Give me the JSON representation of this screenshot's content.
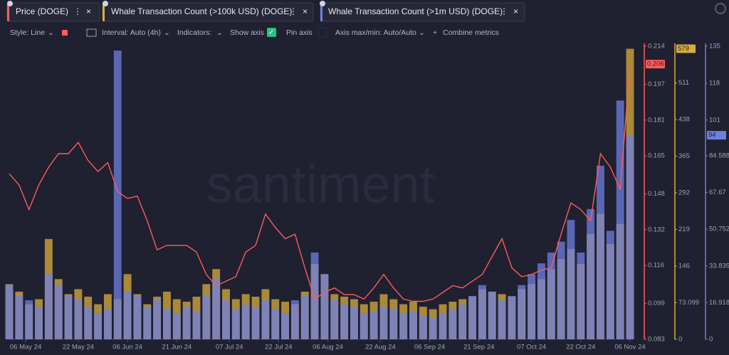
{
  "tabs_icon": true,
  "toolbar": {
    "style": "Style: Line",
    "interval": "Interval: Auto (4h)",
    "indicators": "Indicators:",
    "show_axis": "Show axis",
    "pin_axis": "Pin axis",
    "axis_minmax": "Axis max/min: Auto/Auto",
    "combine": "Combine metrics"
  },
  "watermark": "santiment",
  "chart_data": {
    "type": "combo",
    "grid": false,
    "x": [
      "01 May 24",
      "04 May 24",
      "07 May 24",
      "10 May 24",
      "13 May 24",
      "16 May 24",
      "19 May 24",
      "22 May 24",
      "25 May 24",
      "28 May 24",
      "31 May 24",
      "03 Jun 24",
      "06 Jun 24",
      "09 Jun 24",
      "12 Jun 24",
      "15 Jun 24",
      "18 Jun 24",
      "21 Jun 24",
      "24 Jun 24",
      "27 Jun 24",
      "30 Jun 24",
      "03 Jul 24",
      "06 Jul 24",
      "09 Jul 24",
      "12 Jul 24",
      "15 Jul 24",
      "18 Jul 24",
      "21 Jul 24",
      "24 Jul 24",
      "27 Jul 24",
      "30 Jul 24",
      "02 Aug 24",
      "05 Aug 24",
      "08 Aug 24",
      "11 Aug 24",
      "14 Aug 24",
      "17 Aug 24",
      "20 Aug 24",
      "23 Aug 24",
      "26 Aug 24",
      "29 Aug 24",
      "01 Sep 24",
      "04 Sep 24",
      "07 Sep 24",
      "10 Sep 24",
      "13 Sep 24",
      "16 Sep 24",
      "19 Sep 24",
      "22 Sep 24",
      "25 Sep 24",
      "28 Sep 24",
      "01 Oct 24",
      "04 Oct 24",
      "07 Oct 24",
      "10 Oct 24",
      "13 Oct 24",
      "16 Oct 24",
      "19 Oct 24",
      "22 Oct 24",
      "25 Oct 24",
      "28 Oct 24",
      "31 Oct 24",
      "03 Nov 24",
      "06 Nov 24"
    ],
    "xlim": [
      "01 May 24",
      "06 Nov 24"
    ],
    "xticks": [
      "06 May 24",
      "22 May 24",
      "06 Jun 24",
      "21 Jun 24",
      "07 Jul 24",
      "22 Jul 24",
      "06 Aug 24",
      "22 Aug 24",
      "06 Sep 24",
      "21 Sep 24",
      "07 Oct 24",
      "22 Oct 24",
      "06 Nov 24"
    ],
    "ylim": [
      0.083,
      0.214
    ],
    "yticks": [
      0.083,
      0.099,
      0.116,
      0.132,
      0.148,
      0.165,
      0.181,
      0.197,
      0.214
    ],
    "y2lim": [
      0,
      584
    ],
    "y2ticks": [
      0,
      73.099,
      146,
      219,
      292,
      365,
      438,
      511
    ],
    "y3lim": [
      0,
      135
    ],
    "y3ticks": [
      0,
      16.918,
      33.835,
      50.752,
      67.67,
      84.588,
      101,
      118,
      135
    ],
    "series": [
      {
        "name": "Whale Transaction Count (>100k USD) (DOGE)",
        "type": "bar",
        "axis": "y2",
        "color": "#d9ad3c",
        "values": [
          110,
          95,
          70,
          80,
          200,
          120,
          90,
          100,
          85,
          70,
          90,
          80,
          130,
          90,
          70,
          85,
          95,
          80,
          75,
          85,
          110,
          140,
          100,
          80,
          90,
          85,
          100,
          80,
          75,
          70,
          95,
          150,
          130,
          90,
          85,
          80,
          70,
          75,
          90,
          80,
          70,
          75,
          65,
          60,
          70,
          75,
          80,
          85,
          100,
          95,
          90,
          85,
          100,
          110,
          120,
          140,
          160,
          180,
          150,
          210,
          250,
          190,
          230,
          579
        ]
      },
      {
        "name": "Whale Transaction Count (>1m USD) (DOGE)",
        "type": "bar",
        "axis": "y3",
        "color": "#6f7fe0",
        "values": [
          25,
          20,
          18,
          15,
          30,
          25,
          20,
          18,
          15,
          12,
          14,
          133,
          22,
          20,
          15,
          18,
          14,
          12,
          15,
          13,
          20,
          28,
          18,
          14,
          16,
          15,
          18,
          14,
          12,
          18,
          20,
          40,
          30,
          18,
          16,
          15,
          12,
          13,
          15,
          14,
          12,
          13,
          11,
          10,
          12,
          14,
          16,
          20,
          25,
          22,
          18,
          20,
          25,
          30,
          35,
          40,
          45,
          55,
          40,
          60,
          80,
          50,
          110,
          94
        ]
      },
      {
        "name": "Price (DOGE)",
        "type": "line",
        "axis": "y",
        "color": "#ff5c5c",
        "values": [
          0.157,
          0.152,
          0.141,
          0.152,
          0.16,
          0.166,
          0.166,
          0.171,
          0.163,
          0.158,
          0.162,
          0.149,
          0.146,
          0.147,
          0.136,
          0.123,
          0.125,
          0.125,
          0.125,
          0.122,
          0.112,
          0.107,
          0.109,
          0.111,
          0.122,
          0.125,
          0.139,
          0.133,
          0.128,
          0.13,
          0.115,
          0.101,
          0.104,
          0.106,
          0.103,
          0.103,
          0.101,
          0.106,
          0.112,
          0.106,
          0.101,
          0.1,
          0.1,
          0.101,
          0.104,
          0.107,
          0.106,
          0.109,
          0.112,
          0.12,
          0.128,
          0.115,
          0.111,
          0.112,
          0.114,
          0.115,
          0.13,
          0.144,
          0.141,
          0.136,
          0.166,
          0.16,
          0.15,
          0.206
        ]
      }
    ]
  }
}
